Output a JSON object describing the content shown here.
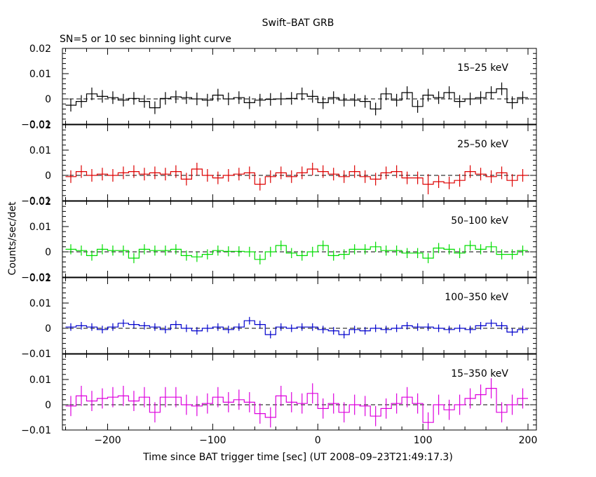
{
  "chart_data": {
    "type": "line",
    "title": "Swift–BAT GRB",
    "subtitle": "SN=5 or 10 sec binning light curve",
    "xlabel": "Time since BAT trigger time [sec] (UT 2008–09–23T21:49:17.3)",
    "ylabel": "Counts/sec/det",
    "xlim": [
      -243,
      208
    ],
    "ylim": [
      -0.01,
      0.02
    ],
    "bin_width": 10,
    "x_ticks": [
      -200,
      -100,
      0,
      100,
      200
    ],
    "x_tick_labels": [
      "−200",
      "−100",
      "0",
      "100",
      "200"
    ],
    "y_tick_labels_top": [
      "0.02",
      "0.01",
      "0",
      "−0.01"
    ],
    "y_tick_labels_bottom": [
      "0.01",
      "0",
      "−0.01"
    ],
    "x": [
      -235,
      -225,
      -215,
      -205,
      -195,
      -185,
      -175,
      -165,
      -155,
      -145,
      -135,
      -125,
      -115,
      -105,
      -95,
      -85,
      -75,
      -65,
      -55,
      -45,
      -35,
      -25,
      -15,
      -5,
      5,
      15,
      25,
      35,
      45,
      55,
      65,
      75,
      85,
      95,
      105,
      115,
      125,
      135,
      145,
      155,
      165,
      175,
      185,
      195
    ],
    "series": [
      {
        "name": "15–25 keV",
        "color": "#000000",
        "values": [
          -0.0025,
          -0.001,
          0.002,
          0.001,
          0.0005,
          -0.0005,
          0.0002,
          -0.001,
          -0.0035,
          0.0002,
          0.0008,
          0.0005,
          0.0,
          -0.0005,
          0.0015,
          0.0,
          0.0005,
          -0.0015,
          -0.0005,
          -0.0002,
          0.0,
          0.0002,
          0.002,
          0.001,
          -0.0015,
          0.0005,
          -0.0005,
          -0.0005,
          -0.001,
          -0.004,
          0.002,
          -0.0005,
          0.0025,
          -0.003,
          0.0015,
          0.0005,
          0.0025,
          -0.001,
          0.0,
          0.0005,
          0.0025,
          0.004,
          -0.0015,
          0.0005
        ],
        "errors": [
          0.0025,
          0.0025,
          0.0025,
          0.0025,
          0.0025,
          0.0025,
          0.0025,
          0.0025,
          0.0025,
          0.0025,
          0.0025,
          0.0025,
          0.0025,
          0.0025,
          0.0025,
          0.0025,
          0.0025,
          0.0025,
          0.0025,
          0.0025,
          0.0025,
          0.0025,
          0.0025,
          0.0025,
          0.0025,
          0.0025,
          0.0025,
          0.0025,
          0.0025,
          0.0025,
          0.0025,
          0.0025,
          0.0025,
          0.0025,
          0.0025,
          0.0025,
          0.0025,
          0.0025,
          0.0025,
          0.0025,
          0.0025,
          0.0025,
          0.0025,
          0.0025
        ]
      },
      {
        "name": "25–50 keV",
        "color": "#dd0000",
        "values": [
          -0.0005,
          0.0015,
          0.0,
          0.0005,
          0.0,
          0.001,
          0.0015,
          0.0005,
          0.001,
          0.0005,
          0.0015,
          -0.0015,
          0.0025,
          0.0,
          -0.001,
          0.0,
          0.0005,
          0.001,
          -0.0035,
          -0.0005,
          0.001,
          -0.0005,
          0.001,
          0.0025,
          0.0015,
          0.0005,
          -0.0005,
          0.0015,
          -0.0005,
          -0.0015,
          0.001,
          0.0015,
          -0.001,
          -0.001,
          -0.0035,
          -0.0025,
          -0.003,
          -0.002,
          0.0015,
          0.0005,
          -0.0005,
          0.001,
          -0.002,
          0.0
        ],
        "errors": [
          0.0025,
          0.0025,
          0.0025,
          0.0025,
          0.0025,
          0.0025,
          0.0025,
          0.0025,
          0.0025,
          0.0025,
          0.0025,
          0.0025,
          0.0025,
          0.0025,
          0.0025,
          0.0025,
          0.0025,
          0.0025,
          0.0025,
          0.0025,
          0.0025,
          0.0025,
          0.0025,
          0.0025,
          0.0025,
          0.0025,
          0.0025,
          0.0025,
          0.0025,
          0.0025,
          0.0025,
          0.0025,
          0.0025,
          0.0025,
          0.004,
          0.0025,
          0.0025,
          0.0025,
          0.0025,
          0.0025,
          0.0025,
          0.0025,
          0.0025,
          0.0025
        ]
      },
      {
        "name": "50–100 keV",
        "color": "#00dd00",
        "values": [
          0.001,
          0.0005,
          -0.0015,
          0.001,
          0.0005,
          0.0005,
          -0.0025,
          0.001,
          0.0005,
          0.0005,
          0.001,
          -0.0015,
          -0.002,
          -0.001,
          0.0005,
          0.0002,
          0.0002,
          0.0,
          -0.003,
          0.0,
          0.0025,
          -0.0005,
          -0.0015,
          0.0,
          0.0025,
          -0.0015,
          -0.001,
          0.001,
          0.001,
          0.002,
          0.0005,
          0.0005,
          -0.0005,
          -0.0005,
          -0.0025,
          0.0015,
          0.001,
          -0.0005,
          0.0025,
          0.001,
          0.002,
          -0.001,
          -0.001,
          0.0005
        ],
        "errors": [
          0.002,
          0.002,
          0.002,
          0.002,
          0.002,
          0.002,
          0.002,
          0.002,
          0.002,
          0.002,
          0.002,
          0.002,
          0.002,
          0.002,
          0.002,
          0.002,
          0.002,
          0.002,
          0.002,
          0.002,
          0.002,
          0.002,
          0.002,
          0.002,
          0.002,
          0.002,
          0.002,
          0.002,
          0.002,
          0.002,
          0.002,
          0.002,
          0.002,
          0.002,
          0.002,
          0.002,
          0.002,
          0.002,
          0.002,
          0.002,
          0.002,
          0.002,
          0.002,
          0.002
        ]
      },
      {
        "name": "100–350 keV",
        "color": "#0000cc",
        "values": [
          0.0005,
          0.001,
          0.0005,
          -0.0005,
          0.0005,
          0.002,
          0.0015,
          0.001,
          0.0005,
          -0.0005,
          0.0015,
          0.0,
          -0.001,
          0.0,
          0.0005,
          -0.0005,
          0.0005,
          0.003,
          0.0015,
          -0.0025,
          0.0005,
          0.0,
          0.0005,
          0.0005,
          -0.0005,
          -0.001,
          -0.0025,
          -0.0005,
          -0.001,
          0.0,
          -0.0005,
          0.0,
          0.001,
          0.0005,
          0.0005,
          0.0,
          -0.0005,
          0.0,
          -0.0005,
          0.001,
          0.002,
          0.001,
          -0.0015,
          -0.0005
        ],
        "errors": [
          0.0015,
          0.0015,
          0.0015,
          0.0015,
          0.0015,
          0.0015,
          0.0015,
          0.0015,
          0.0015,
          0.0015,
          0.0015,
          0.0015,
          0.0015,
          0.0015,
          0.0015,
          0.0015,
          0.0015,
          0.0015,
          0.0015,
          0.0015,
          0.0015,
          0.0015,
          0.0015,
          0.0015,
          0.0015,
          0.0015,
          0.0015,
          0.0015,
          0.0015,
          0.0015,
          0.0015,
          0.0015,
          0.0015,
          0.0015,
          0.0015,
          0.0015,
          0.0015,
          0.0015,
          0.0015,
          0.0015,
          0.0015,
          0.0015,
          0.0015,
          0.0015
        ]
      },
      {
        "name": "15–350 keV",
        "color": "#dd00dd",
        "values": [
          -0.0005,
          0.0035,
          0.0015,
          0.0025,
          0.003,
          0.0035,
          0.0015,
          0.003,
          -0.003,
          0.003,
          0.003,
          0.0,
          -0.0005,
          0.0005,
          0.003,
          0.001,
          0.002,
          0.001,
          -0.0035,
          -0.005,
          0.0035,
          0.001,
          0.0005,
          0.0045,
          -0.0015,
          0.0005,
          -0.003,
          0.0,
          -0.0005,
          -0.0045,
          -0.0015,
          0.0005,
          0.003,
          0.0005,
          -0.007,
          0.0,
          -0.002,
          0.0,
          0.0025,
          0.004,
          0.0065,
          -0.003,
          0.0,
          0.0025
        ],
        "errors": [
          0.004,
          0.004,
          0.004,
          0.004,
          0.004,
          0.004,
          0.004,
          0.004,
          0.004,
          0.004,
          0.004,
          0.004,
          0.004,
          0.004,
          0.004,
          0.004,
          0.004,
          0.004,
          0.004,
          0.004,
          0.004,
          0.004,
          0.004,
          0.004,
          0.004,
          0.004,
          0.004,
          0.004,
          0.004,
          0.004,
          0.004,
          0.004,
          0.004,
          0.004,
          0.004,
          0.004,
          0.004,
          0.004,
          0.004,
          0.004,
          0.004,
          0.004,
          0.004,
          0.004
        ]
      }
    ]
  }
}
